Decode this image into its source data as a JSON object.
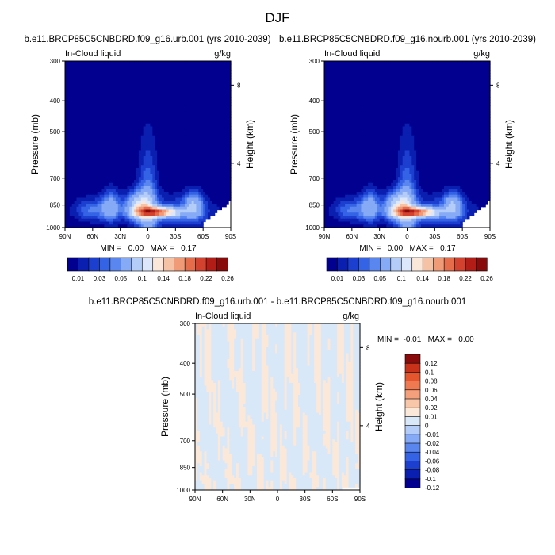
{
  "figure_title": "DJF",
  "cb_top_labels": [
    "0.01",
    "0.03",
    "0.05",
    "0.1",
    "0.14",
    "0.18",
    "0.22",
    "0.26"
  ],
  "cb_diff_labels": [
    "0.12",
    "0.1",
    "0.08",
    "0.06",
    "0.04",
    "0.02",
    "0.01",
    "0",
    "-0.01",
    "-0.02",
    "-0.04",
    "-0.06",
    "-0.08",
    "-0.1",
    "-0.12"
  ],
  "colors": {
    "top_levels": [
      "#02008f",
      "#0a1fb0",
      "#1d3fd0",
      "#3563e6",
      "#5a86f0",
      "#86aaf5",
      "#b3ccf8",
      "#dce7fb",
      "#fbe7da",
      "#f6c2a6",
      "#f09a77",
      "#e56d4c",
      "#d3422f",
      "#b21d17",
      "#880a0a"
    ],
    "diff_levels": [
      "#02008f",
      "#0a1fb0",
      "#1d3fd0",
      "#3563e6",
      "#5a86f0",
      "#86aaf5",
      "#b3ccf8",
      "#d8e8f8",
      "#fbe8d8",
      "#f8c6a8",
      "#f4a07c",
      "#ef7a52",
      "#e5552e",
      "#c8321a",
      "#8a0b0b"
    ],
    "diff_pos": "#fbe8d8",
    "diff_neg": "#d8e8f8"
  },
  "chart_data": [
    {
      "type": "contour",
      "title": "b.e11.BRCP85C5CNBDRD.f09_g16.urb.001 (yrs 2010-2039)",
      "left_label": "In-Cloud liquid",
      "right_label": "g/kg",
      "ylabel": "Pressure (mb)",
      "y2label": "Height (km)",
      "xticks": [
        "90N",
        "60N",
        "30N",
        "0",
        "30S",
        "60S",
        "90S"
      ],
      "yticks": [
        "300",
        "400",
        "500",
        "700",
        "850",
        "1000"
      ],
      "ytick_values": [
        300,
        400,
        500,
        700,
        850,
        1000
      ],
      "y2ticks": [
        "8",
        "4"
      ],
      "y2tick_pressures": [
        357,
        628
      ],
      "xlim": [
        90,
        -90
      ],
      "ylim": [
        1000,
        300
      ],
      "min": "0.00",
      "max": "0.17",
      "stats_text": "MIN =   0.00   MAX =   0.17"
    },
    {
      "type": "contour",
      "title": "b.e11.BRCP85C5CNBDRD.f09_g16.nourb.001 (yrs 2010-2039)",
      "left_label": "In-Cloud liquid",
      "right_label": "g/kg",
      "ylabel": "Pressure (mb)",
      "y2label": "Height (km)",
      "xticks": [
        "90N",
        "60N",
        "30N",
        "0",
        "30S",
        "60S",
        "90S"
      ],
      "yticks": [
        "300",
        "400",
        "500",
        "700",
        "850",
        "1000"
      ],
      "ytick_values": [
        300,
        400,
        500,
        700,
        850,
        1000
      ],
      "y2ticks": [
        "8",
        "4"
      ],
      "y2tick_pressures": [
        357,
        628
      ],
      "xlim": [
        90,
        -90
      ],
      "ylim": [
        1000,
        300
      ],
      "min": "0.00",
      "max": "0.17",
      "stats_text": "MIN =   0.00   MAX =   0.17"
    },
    {
      "type": "contour",
      "title": "b.e11.BRCP85C5CNBDRD.f09_g16.urb.001 - b.e11.BRCP85C5CNBDRD.f09_g16.nourb.001",
      "left_label": "In-Cloud liquid",
      "right_label": "g/kg",
      "ylabel": "Pressure (mb)",
      "y2label": "Height (km)",
      "xticks": [
        "90N",
        "60N",
        "30N",
        "0",
        "30S",
        "60S",
        "90S"
      ],
      "yticks": [
        "300",
        "400",
        "500",
        "700",
        "850",
        "1000"
      ],
      "ytick_values": [
        300,
        400,
        500,
        700,
        850,
        1000
      ],
      "y2ticks": [
        "8",
        "4"
      ],
      "y2tick_pressures": [
        357,
        628
      ],
      "xlim": [
        90,
        -90
      ],
      "ylim": [
        1000,
        300
      ],
      "min": "-0.01",
      "max": "0.00",
      "stats_text": "MIN =  -0.01   MAX =   0.00"
    }
  ]
}
